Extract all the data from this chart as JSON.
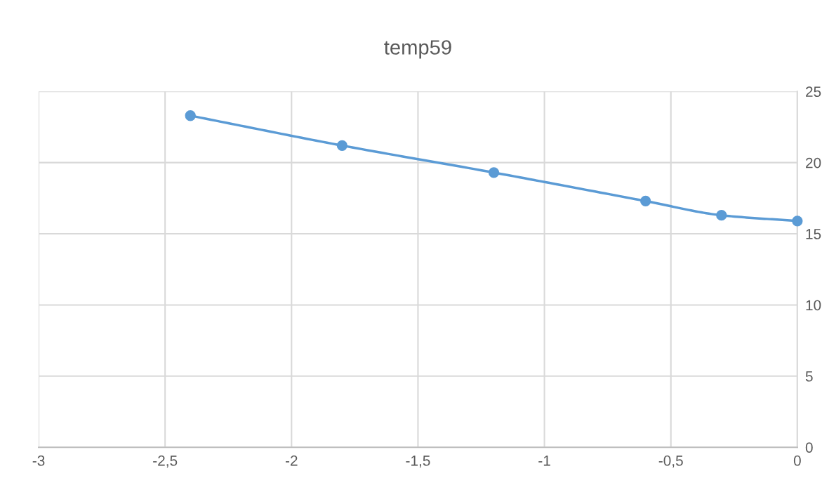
{
  "chart_data": {
    "type": "line",
    "title": "temp59",
    "x": [
      -2.4,
      -1.8,
      -1.2,
      -0.6,
      -0.3,
      0
    ],
    "series": [
      {
        "color": "#5b9bd5",
        "values": [
          23.3,
          21.2,
          19.3,
          17.3,
          16.3,
          15.9
        ]
      }
    ],
    "xlim": [
      -3,
      0
    ],
    "xticks": [
      {
        "value": -3,
        "label": "-3"
      },
      {
        "value": -2.5,
        "label": "-2,5"
      },
      {
        "value": -2,
        "label": "-2"
      },
      {
        "value": -1.5,
        "label": "-1,5"
      },
      {
        "value": -1,
        "label": "-1"
      },
      {
        "value": -0.5,
        "label": "-0,5"
      },
      {
        "value": 0,
        "label": "0"
      }
    ],
    "ylim": [
      0,
      25
    ],
    "yticks": [
      0,
      5,
      10,
      15,
      20,
      25
    ],
    "grid": true,
    "marker": "circle",
    "line_style": "solid",
    "legend": false
  }
}
